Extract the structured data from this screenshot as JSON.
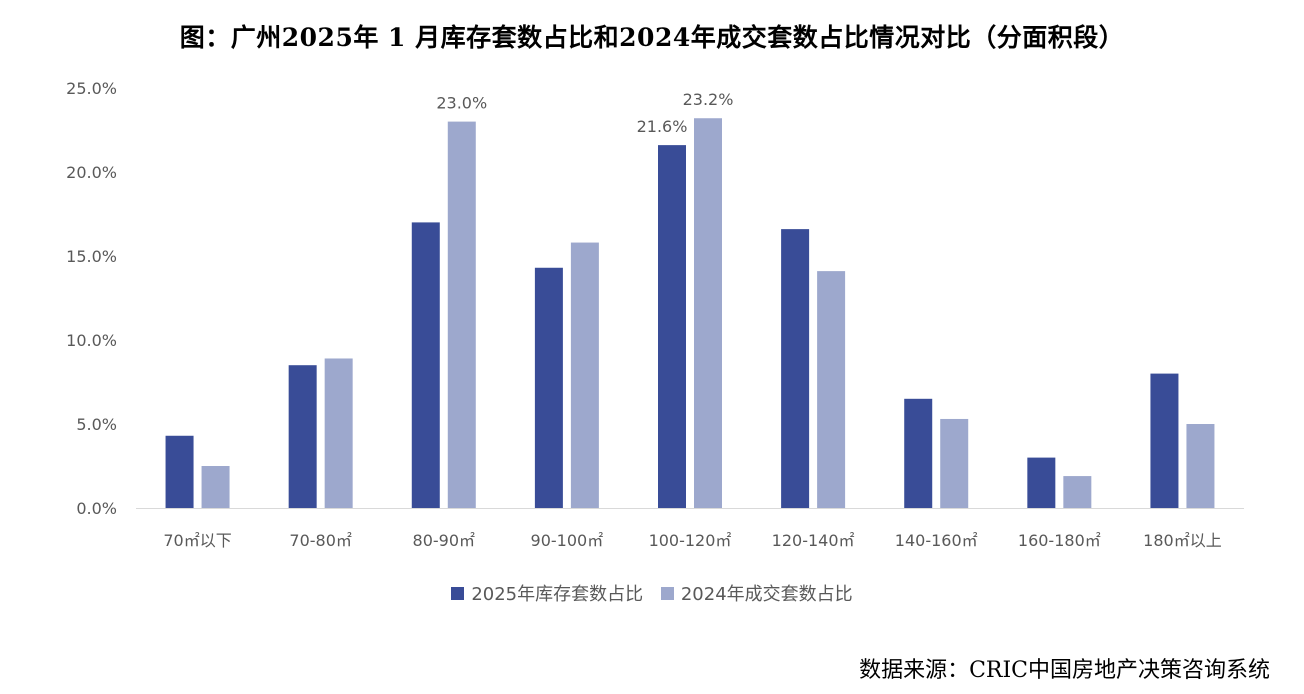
{
  "chart_data": {
    "type": "bar",
    "title": "图：广州2025年 1 月库存套数占比和2024年成交套数占比情况对比（分面积段）",
    "categories": [
      "70㎡以下",
      "70-80㎡",
      "80-90㎡",
      "90-100㎡",
      "100-120㎡",
      "120-140㎡",
      "140-160㎡",
      "160-180㎡",
      "180㎡以上"
    ],
    "series": [
      {
        "name": "2025年库存套数占比",
        "color": "#394C97",
        "values": [
          4.3,
          8.5,
          17.0,
          14.3,
          21.6,
          16.6,
          6.5,
          3.0,
          8.0
        ]
      },
      {
        "name": "2024年成交套数占比",
        "color": "#9DA8CD",
        "values": [
          2.5,
          8.9,
          23.0,
          15.8,
          23.2,
          14.1,
          5.3,
          1.9,
          5.0
        ]
      }
    ],
    "data_labels": [
      {
        "series": 1,
        "index": 2,
        "text": "23.0%"
      },
      {
        "series": 0,
        "index": 4,
        "text": "21.6%"
      },
      {
        "series": 1,
        "index": 4,
        "text": "23.2%"
      }
    ],
    "yticks": [
      "0.0%",
      "5.0%",
      "10.0%",
      "15.0%",
      "20.0%",
      "25.0%"
    ],
    "ylim": [
      0,
      25
    ],
    "xlabel": "",
    "ylabel": "",
    "legend_position": "bottom"
  },
  "source": "数据来源：CRIC中国房地产决策咨询系统"
}
